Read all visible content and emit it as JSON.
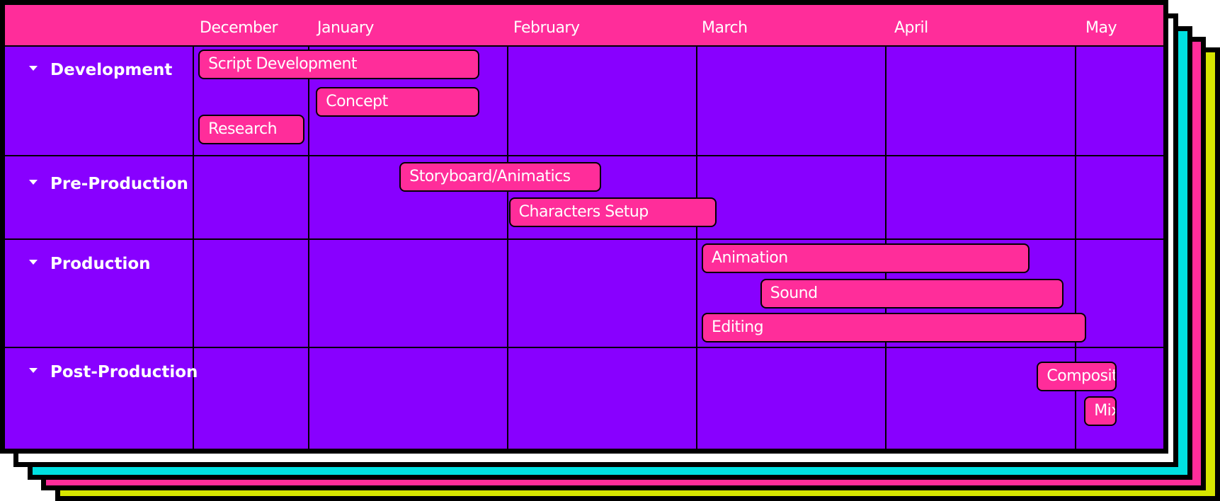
{
  "chart_data": {
    "type": "gantt",
    "months": [
      "December",
      "January",
      "February",
      "March",
      "April",
      "May"
    ],
    "groups": [
      {
        "name": "Development",
        "tasks": [
          "Script Development",
          "Concept",
          "Research"
        ]
      },
      {
        "name": "Pre-Production",
        "tasks": [
          "Storyboard/Animatics",
          "Characters Setup"
        ]
      },
      {
        "name": "Production",
        "tasks": [
          "Animation",
          "Sound",
          "Editing"
        ]
      },
      {
        "name": "Post-Production",
        "tasks": [
          "Composition",
          "Mixing"
        ]
      }
    ],
    "tasks": [
      {
        "name": "Script Development",
        "group": "Development",
        "start_month": 0.05,
        "end_month": 1.86
      },
      {
        "name": "Concept",
        "group": "Development",
        "start_month": 1.04,
        "end_month": 1.86
      },
      {
        "name": "Research",
        "group": "Development",
        "start_month": 0.05,
        "end_month": 0.97
      },
      {
        "name": "Storyboard/Animatics",
        "group": "Pre-Production",
        "start_month": 1.46,
        "end_month": 2.5
      },
      {
        "name": "Characters Setup",
        "group": "Pre-Production",
        "start_month": 2.01,
        "end_month": 3.11
      },
      {
        "name": "Animation",
        "group": "Production",
        "start_month": 3.03,
        "end_month": 4.76
      },
      {
        "name": "Sound",
        "group": "Production",
        "start_month": 3.34,
        "end_month": 4.94
      },
      {
        "name": "Editing",
        "group": "Production",
        "start_month": 3.03,
        "end_month": 5.12
      },
      {
        "name": "Composition",
        "group": "Post-Production",
        "start_month": 4.8,
        "end_month": 5.45
      },
      {
        "name": "Mixing",
        "group": "Post-Production",
        "start_month": 5.1,
        "end_month": 5.45
      }
    ],
    "colors": {
      "header": "#ff2d9a",
      "background": "#8800ff",
      "bar": "#ff2d9a",
      "bar_text": "#ffffff"
    },
    "backing_layers": [
      "#ffffff",
      "#00e0e0",
      "#ff2d9a",
      "#d6e600"
    ]
  }
}
